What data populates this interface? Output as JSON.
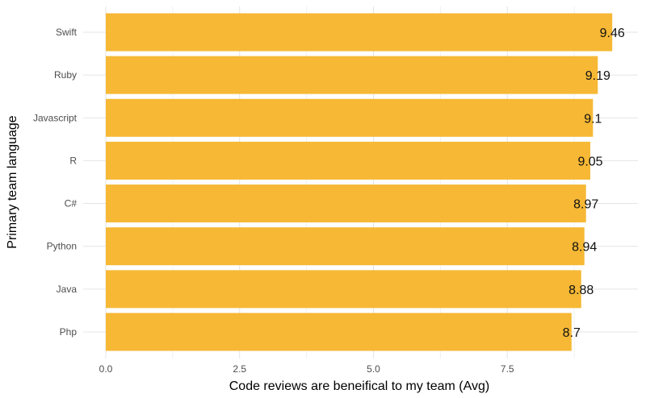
{
  "chart_data": {
    "type": "bar",
    "orientation": "horizontal",
    "categories": [
      "Swift",
      "Ruby",
      "Javascript",
      "R",
      "C#",
      "Python",
      "Java",
      "Php"
    ],
    "values": [
      9.46,
      9.19,
      9.1,
      9.05,
      8.97,
      8.94,
      8.88,
      8.7
    ],
    "data_labels": [
      "9.46",
      "9.19",
      "9.1",
      "9.05",
      "8.97",
      "8.94",
      "8.88",
      "8.7"
    ],
    "xlabel": "Code reviews are beneifical to my team (Avg)",
    "ylabel": "Primary team language",
    "xlim": [
      0,
      9.9
    ],
    "x_ticks": [
      "0.0",
      "2.5",
      "5.0",
      "7.5"
    ],
    "x_tick_values": [
      0,
      2.5,
      5,
      7.5
    ],
    "grid": true,
    "bar_color": "#F6B835"
  }
}
